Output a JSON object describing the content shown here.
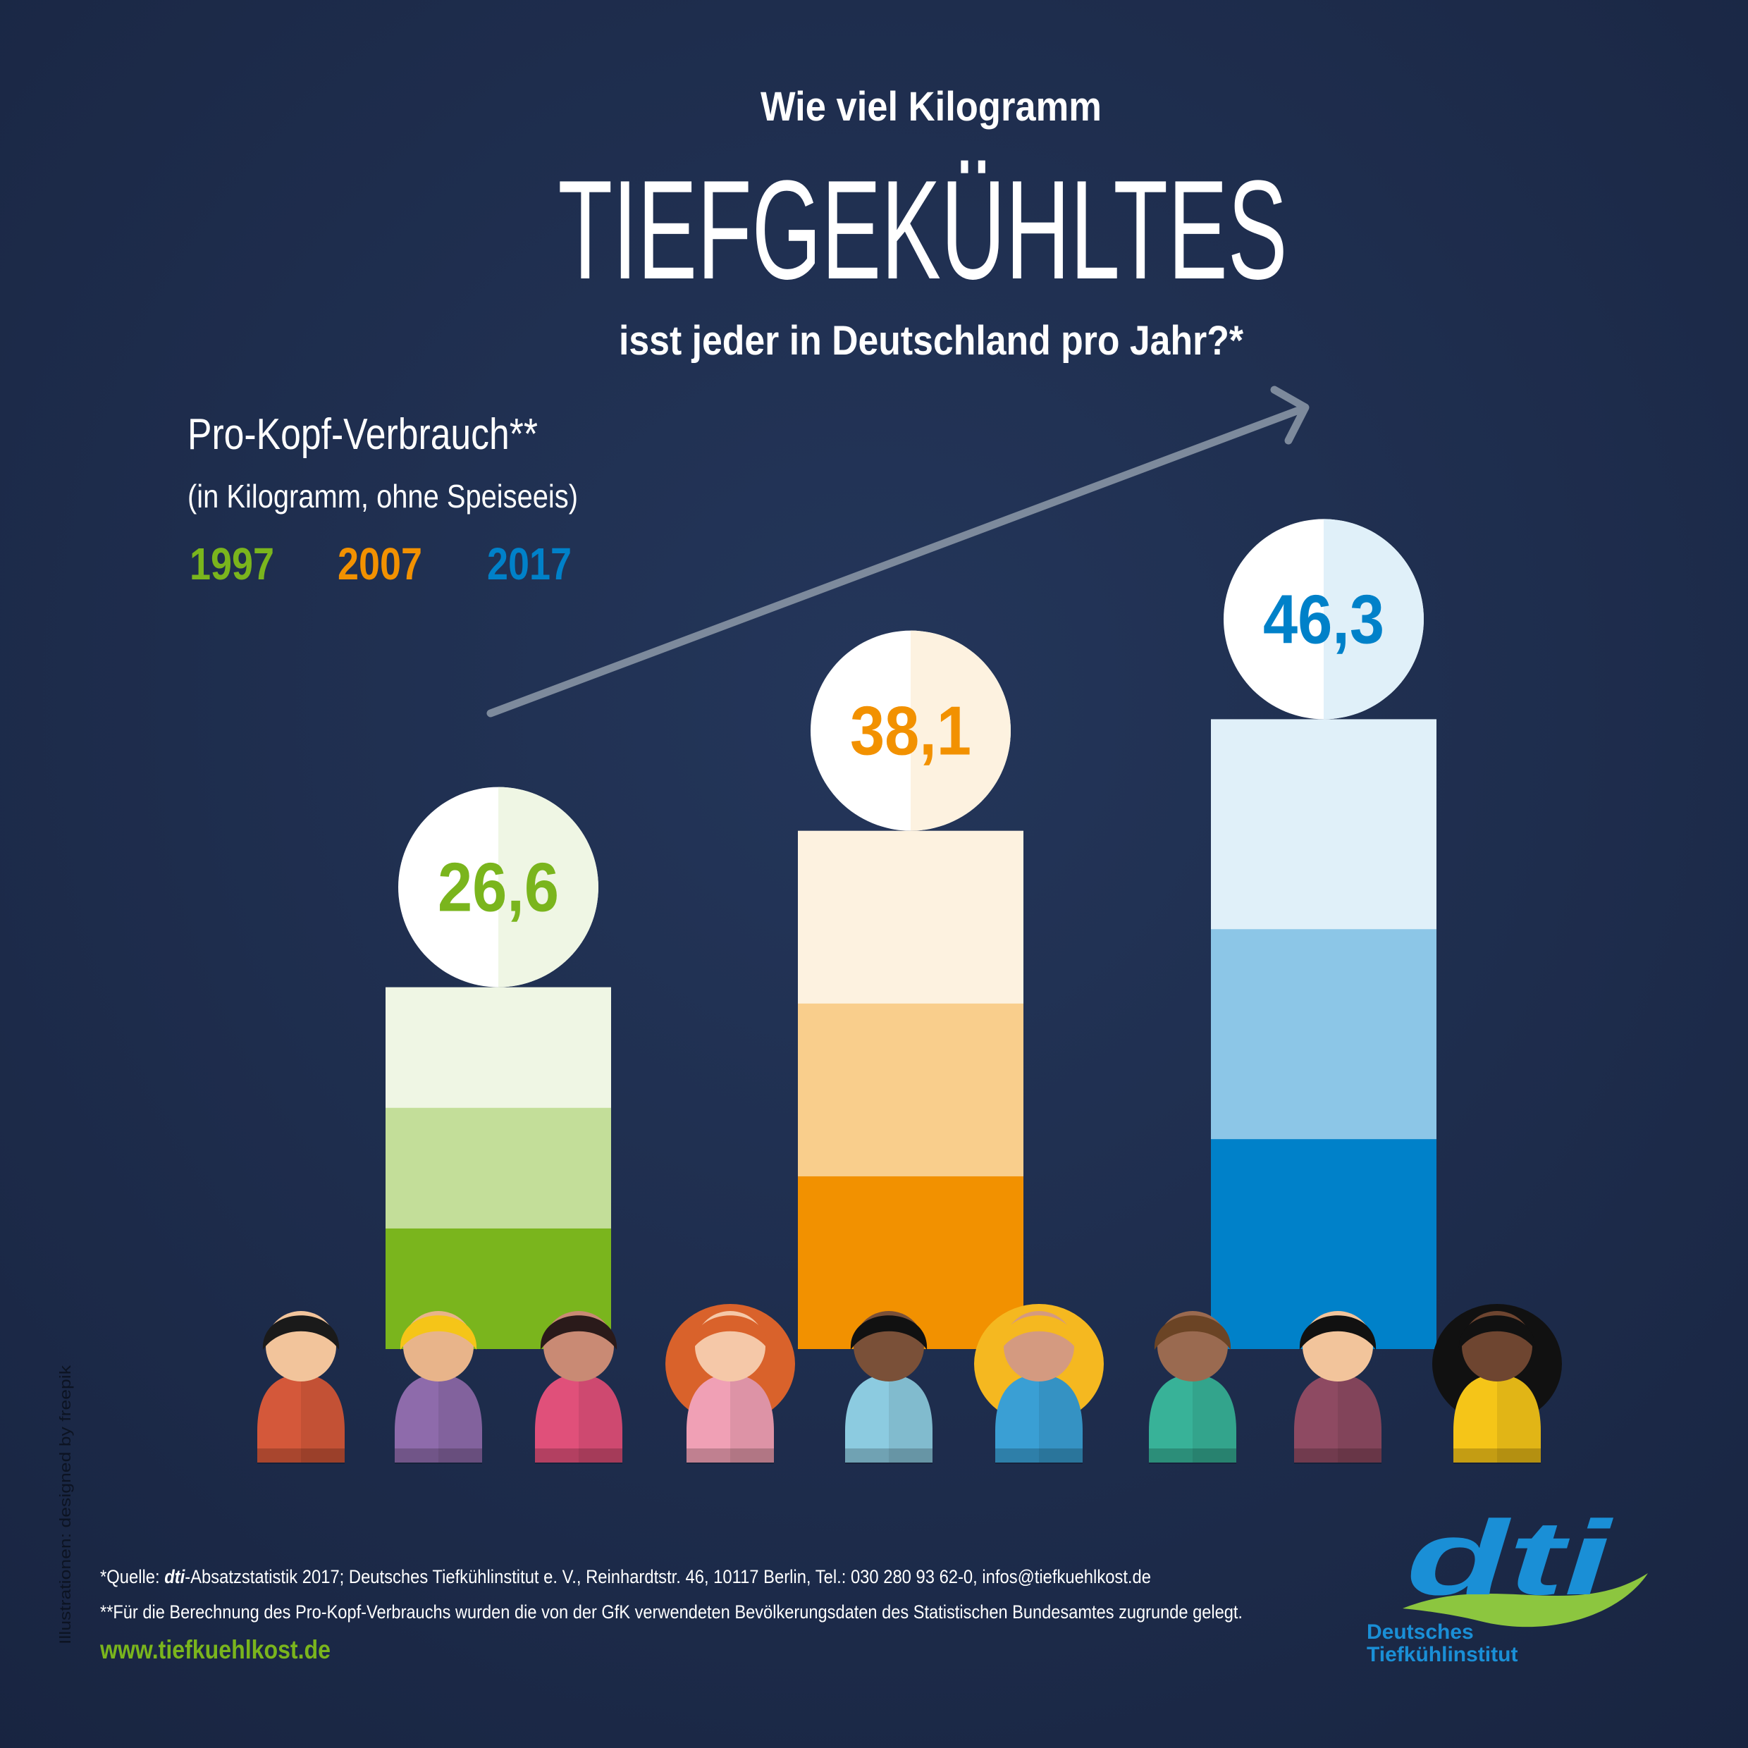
{
  "chart_data": {
    "type": "bar",
    "title_top": "Wie viel Kilogramm",
    "title": "TIEFGEKÜHLTES",
    "title_bottom": "isst jeder in Deutschland pro Jahr?*",
    "subtitle": "Pro-Kopf-Verbrauch**",
    "unit_note": "(in Kilogramm, ohne Speiseeis)",
    "categories": [
      "1997",
      "2007",
      "2017"
    ],
    "values": [
      26.6,
      38.1,
      46.3
    ],
    "value_labels": [
      "26,6",
      "38,1",
      "46,3"
    ],
    "colors": [
      "#7ab51d",
      "#f29100",
      "#0081c9"
    ]
  },
  "footer": {
    "source_prefix": "*Quelle: ",
    "source_brand": "dti",
    "source_text": "-Absatzstatistik 2017; Deutsches Tiefkühlinstitut e. V., Reinhardtstr. 46, 10117 Berlin, Tel.: 030 280 93 62-0, infos@tiefkuehlkost.de",
    "note": "**Für die Berechnung des Pro-Kopf-Verbrauchs wurden die von der GfK verwendeten Bevölkerungsdaten des Statistischen Bundesamtes zugrunde gelegt.",
    "website": "www.tiefkuehlkost.de",
    "credit": "Illustrationen: designed by freepik"
  },
  "logo": {
    "mark": "dti",
    "line1": "Deutsches",
    "line2": "Tiefkühlinstitut"
  }
}
